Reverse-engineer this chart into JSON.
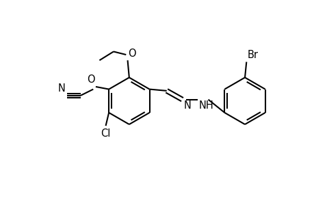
{
  "bg_color": "#ffffff",
  "line_color": "#000000",
  "line_width": 1.5,
  "font_size": 10.5,
  "figsize": [
    4.6,
    3.0
  ],
  "dpi": 100,
  "xlim": [
    0,
    10
  ],
  "ylim": [
    0,
    6.5
  ]
}
